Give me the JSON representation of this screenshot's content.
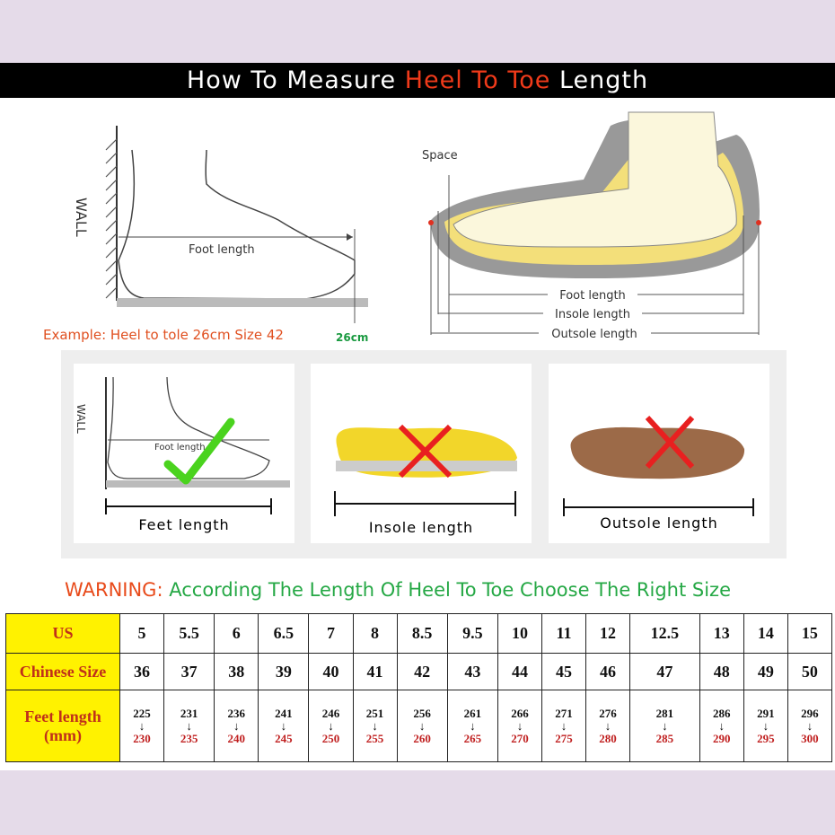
{
  "banner": {
    "prefix": "How To Measure ",
    "highlight": "Heel To Toe",
    "suffix": " Length"
  },
  "diagram1": {
    "wall": "WALL",
    "foot_length": "Foot length",
    "example": "Example: Heel to tole 26cm Size 42",
    "mark": "26cm"
  },
  "diagram2": {
    "space": "Space",
    "foot_length": "Foot length",
    "insole_length": "Insole length",
    "outsole_length": "Outsole length"
  },
  "panels": [
    {
      "label": "Feet length",
      "wall": "WALL",
      "foot_length": "Foot length",
      "status": "correct"
    },
    {
      "label": "Insole length",
      "status": "wrong"
    },
    {
      "label": "Outsole length",
      "status": "wrong"
    }
  ],
  "warning": {
    "prefix": "WARNING:",
    "text": "According The Length Of Heel To Toe Choose The Right Size"
  },
  "colors": {
    "banner_highlight": "#f03a1a",
    "header_bg": "#fff200",
    "header_text": "#c0301a",
    "warning_text": "#25a845"
  },
  "table": {
    "headers": [
      "US",
      "Chinese Size",
      "Feet length",
      "(mm)"
    ],
    "us": [
      "5",
      "5.5",
      "6",
      "6.5",
      "7",
      "8",
      "8.5",
      "9.5",
      "10",
      "11",
      "12",
      "12.5",
      "13",
      "14",
      "15"
    ],
    "chinese": [
      "36",
      "37",
      "38",
      "39",
      "40",
      "41",
      "42",
      "43",
      "44",
      "45",
      "46",
      "47",
      "48",
      "49",
      "50"
    ],
    "feet_from": [
      "225",
      "231",
      "236",
      "241",
      "246",
      "251",
      "256",
      "261",
      "266",
      "271",
      "276",
      "281",
      "286",
      "291",
      "296"
    ],
    "feet_to": [
      "230",
      "235",
      "240",
      "245",
      "250",
      "255",
      "260",
      "265",
      "270",
      "275",
      "280",
      "285",
      "290",
      "295",
      "300"
    ],
    "arrow": "↓"
  }
}
